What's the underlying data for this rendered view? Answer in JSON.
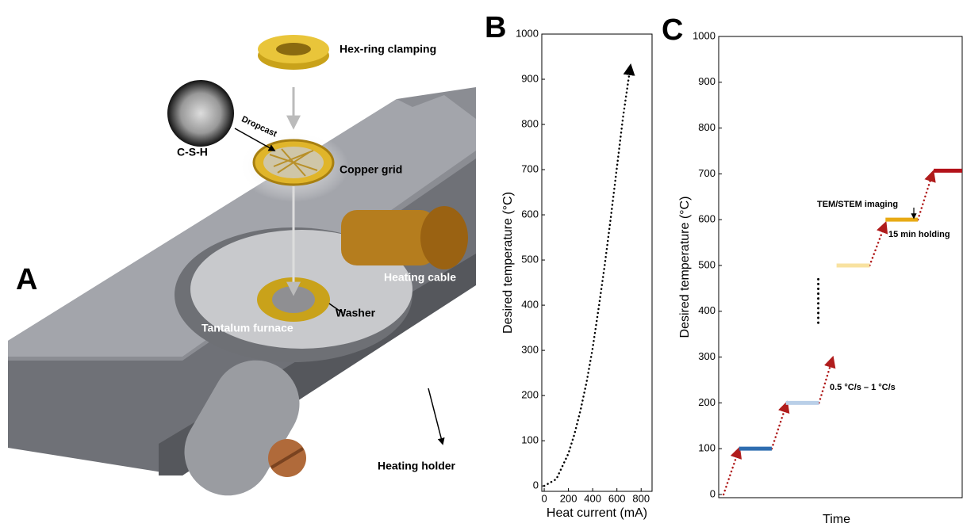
{
  "illustration": {
    "panel_label": "A",
    "labels": [
      "Hex-ring clamping",
      "Dropcast",
      "C-S-H",
      "Copper grid",
      "Heating cable",
      "Washer",
      "Tantalum furnace",
      "Heating holder"
    ]
  },
  "chart_data": [
    {
      "type": "line",
      "panel_label": "B",
      "xlabel": "Heat current (mA)",
      "ylabel": "Desired temperature (°C)",
      "x": [
        0,
        100,
        200,
        250,
        300,
        350,
        400,
        450,
        500,
        550,
        600,
        650,
        712
      ],
      "values": [
        0,
        15,
        72,
        115,
        168,
        230,
        305,
        395,
        490,
        595,
        705,
        815,
        930
      ],
      "color": "#000000",
      "line_style": "dotted",
      "xlim": [
        -20,
        890
      ],
      "ylim": [
        -12,
        1000
      ],
      "xticks": [
        0,
        200,
        400,
        600,
        800
      ],
      "yticks": [
        0,
        100,
        200,
        300,
        400,
        500,
        600,
        700,
        800,
        900,
        1000
      ]
    },
    {
      "type": "steps",
      "panel_label": "C",
      "xlabel": "Time",
      "ylabel": "Desired temperature (°C)",
      "xlim": [
        0,
        100
      ],
      "ylim": [
        -7,
        1000
      ],
      "yticks": [
        0,
        100,
        200,
        300,
        400,
        500,
        600,
        700,
        800,
        900,
        1000
      ],
      "ramp_color": "#b01c1c",
      "holds": [
        {
          "x": [
            8.4,
            21.8
          ],
          "value": 100,
          "color": "#2e6db0"
        },
        {
          "x": [
            27.6,
            41.2
          ],
          "value": 200,
          "color": "#b9cfe8"
        },
        {
          "x": [
            48.4,
            62
          ],
          "value": 500,
          "color": "#f8e2a0"
        },
        {
          "x": [
            68.5,
            81.8
          ],
          "value": 600,
          "color": "#e8aa14"
        },
        {
          "x": [
            88.3,
            100
          ],
          "value": 707,
          "color": "#b3121a"
        }
      ],
      "ramps": [
        {
          "x": [
            2,
            8.4
          ],
          "values": [
            0,
            100
          ]
        },
        {
          "x": [
            21.8,
            28
          ],
          "values": [
            100,
            200
          ]
        },
        {
          "x": [
            41.2,
            46.8
          ],
          "values": [
            200,
            298
          ]
        },
        {
          "x": [
            62,
            68.5
          ],
          "values": [
            500,
            592
          ]
        },
        {
          "x": [
            81.8,
            88
          ],
          "values": [
            600,
            704
          ]
        }
      ],
      "jump": {
        "x": [
          40.9,
          40.9
        ],
        "values": [
          375,
          470
        ],
        "color": "#000000"
      },
      "annotations": [
        "TEM/STEM imaging",
        "15 min holding",
        "0.5 °C/s – 1 °C/s"
      ]
    }
  ]
}
